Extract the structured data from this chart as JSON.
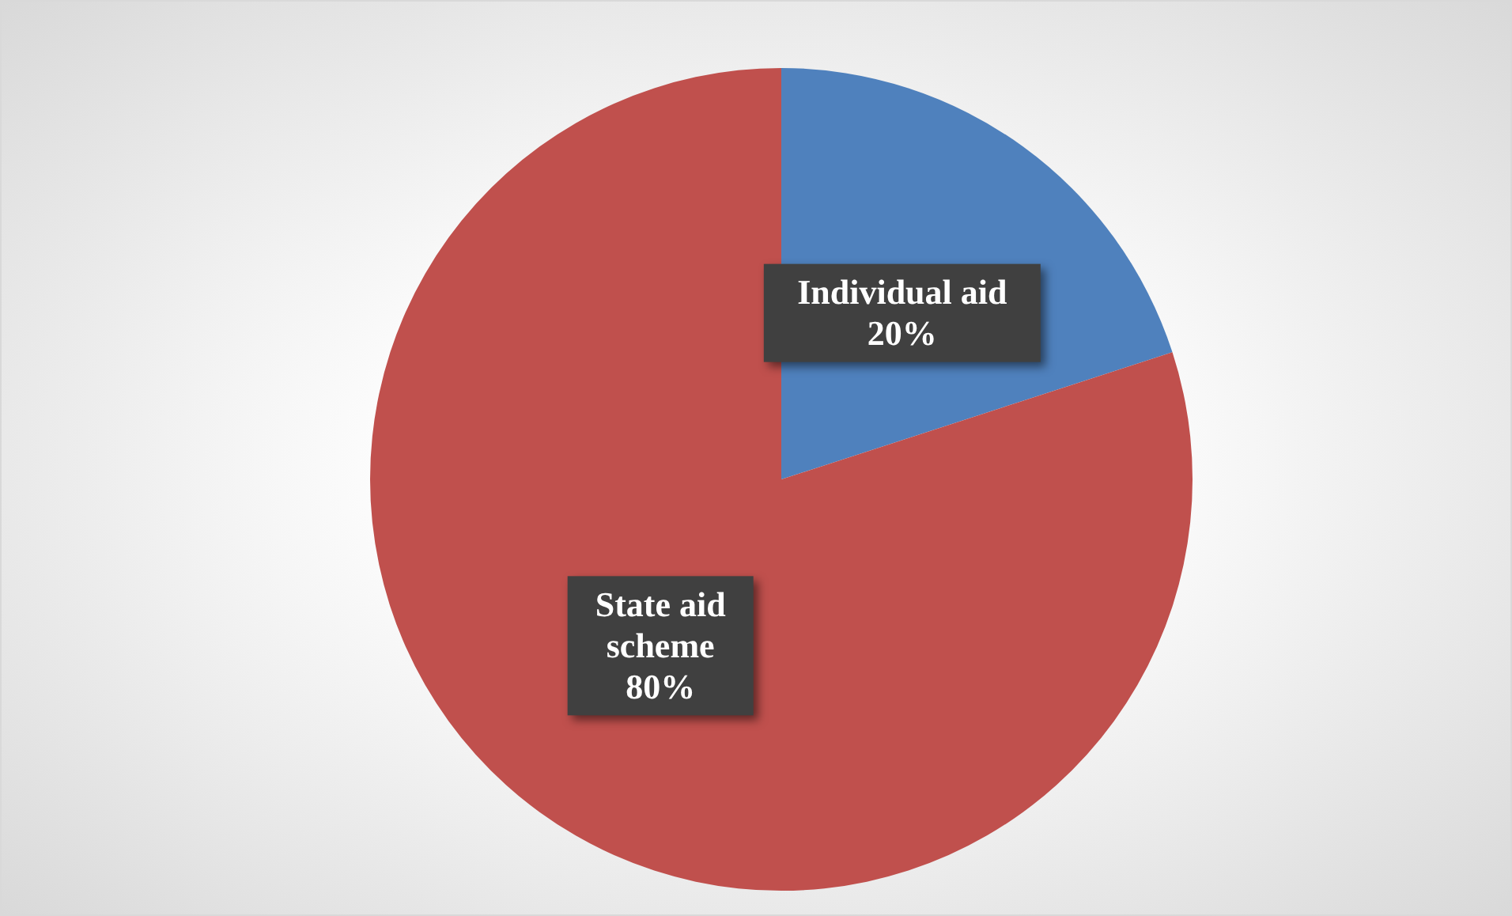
{
  "chart_data": {
    "type": "pie",
    "categories": [
      "Individual aid",
      "State aid scheme"
    ],
    "values": [
      20,
      80
    ],
    "colors": [
      "#4f81bd",
      "#c0504d"
    ],
    "value_labels": [
      "20%",
      "80%"
    ],
    "legend": false
  }
}
